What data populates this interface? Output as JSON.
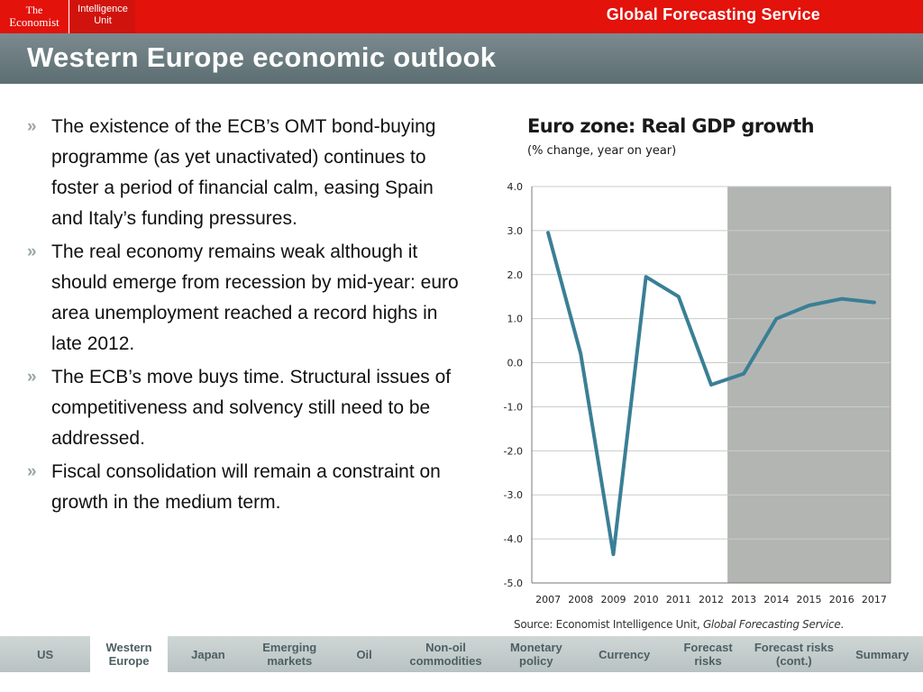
{
  "header": {
    "brand_line1": "The",
    "brand_line2": "Economist",
    "unit_line1": "Intelligence",
    "unit_line2": "Unit",
    "service": "Global Forecasting Service"
  },
  "slide": {
    "title": "Western Europe economic outlook",
    "bullet_marker": "»",
    "bullets": [
      "The existence of the ECB’s OMT bond-buying programme (as yet unactivated) continues to foster a period of financial calm, easing Spain and Italy’s funding pressures.",
      "The real economy remains weak although it should emerge from recession by mid-year: euro area unemployment reached a record highs in late 2012.",
      "The ECB’s move buys time. Structural issues of competitiveness and solvency still need to be addressed.",
      "Fiscal consolidation will remain a constraint on growth in the medium term."
    ]
  },
  "chart_data": {
    "type": "line",
    "title": "Euro zone: Real GDP growth",
    "subtitle": "(% change,  year on year)",
    "source_prefix": "Source: Economist Intelligence Unit, ",
    "source_italic": "Global Forecasting Service",
    "source_suffix": ".",
    "x": [
      "2007",
      "2008",
      "2009",
      "2010",
      "2011",
      "2012",
      "2013",
      "2014",
      "2015",
      "2016",
      "2017"
    ],
    "series": [
      {
        "values": [
          2.95,
          0.2,
          -4.35,
          1.95,
          1.5,
          -0.5,
          -0.25,
          1.0,
          1.3,
          1.45,
          1.37
        ]
      }
    ],
    "y_ticks": [
      "4.0",
      "3.0",
      "2.0",
      "1.0",
      "0.0",
      "-1.0",
      "-2.0",
      "-3.0",
      "-4.0",
      "-5.0"
    ],
    "ylim": [
      -5,
      4
    ],
    "forecast_start": "2013",
    "grid": true,
    "line_color": "#3a7f95",
    "forecast_shade_color": "#b3b5b3"
  },
  "nav": {
    "tabs": [
      {
        "label": "US",
        "active": false
      },
      {
        "label": "Western Europe",
        "active": true
      },
      {
        "label": "Japan",
        "active": false
      },
      {
        "label": "Emerging markets",
        "active": false
      },
      {
        "label": "Oil",
        "active": false
      },
      {
        "label": "Non-oil commodities",
        "active": false
      },
      {
        "label": "Monetary policy",
        "active": false
      },
      {
        "label": "Currency",
        "active": false
      },
      {
        "label": "Forecast risks",
        "active": false
      },
      {
        "label": "Forecast risks (cont.)",
        "active": false
      },
      {
        "label": "Summary",
        "active": false
      }
    ]
  }
}
